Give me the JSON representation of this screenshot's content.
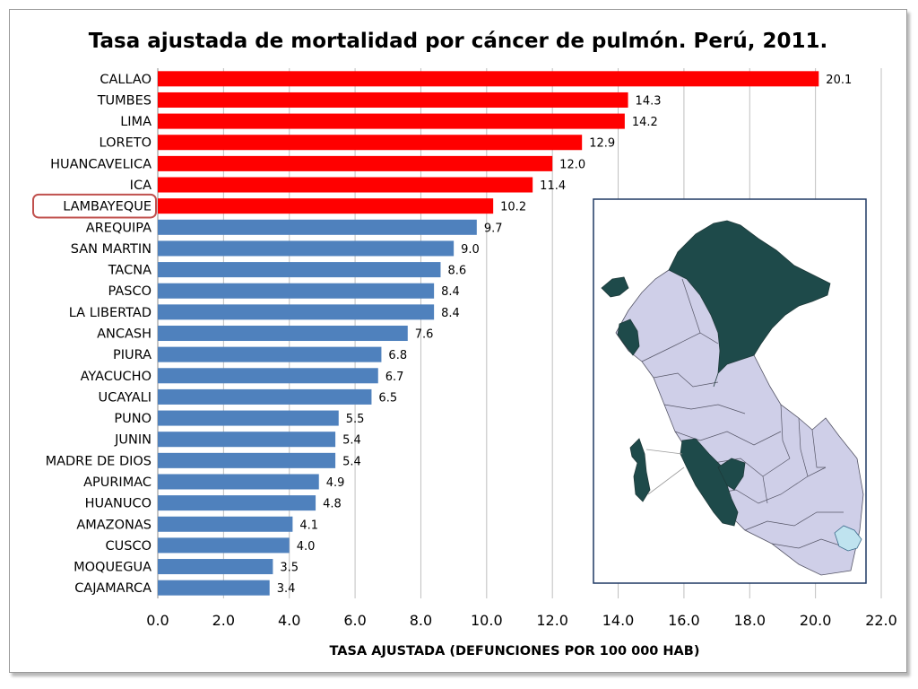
{
  "chart_data": {
    "type": "bar",
    "orientation": "horizontal",
    "title": "Tasa ajustada de mortalidad por cáncer de pulmón. Perú, 2011.",
    "xlabel": "TASA AJUSTADA (DEFUNCIONES POR 100 000 HAB)",
    "ylabel": "",
    "xlim": [
      0,
      22
    ],
    "x_ticks": [
      "0.0",
      "2.0",
      "4.0",
      "6.0",
      "8.0",
      "10.0",
      "12.0",
      "14.0",
      "16.0",
      "18.0",
      "20.0",
      "22.0"
    ],
    "grid": true,
    "categories": [
      "CALLAO",
      "TUMBES",
      "LIMA",
      "LORETO",
      "HUANCAVELICA",
      "ICA",
      "LAMBAYEQUE",
      "AREQUIPA",
      "SAN MARTIN",
      "TACNA",
      "PASCO",
      "LA LIBERTAD",
      "ANCASH",
      "PIURA",
      "AYACUCHO",
      "UCAYALI",
      "PUNO",
      "JUNIN",
      "MADRE DE DIOS",
      "APURIMAC",
      "HUANUCO",
      "AMAZONAS",
      "CUSCO",
      "MOQUEGUA",
      "CAJAMARCA"
    ],
    "values": [
      20.1,
      14.3,
      14.2,
      12.9,
      12.0,
      11.4,
      10.2,
      9.7,
      9.0,
      8.6,
      8.4,
      8.4,
      7.6,
      6.8,
      6.7,
      6.5,
      5.5,
      5.4,
      5.4,
      4.9,
      4.8,
      4.1,
      4.0,
      3.5,
      3.4
    ],
    "value_labels": [
      "20.1",
      "14.3",
      "14.2",
      "12.9",
      "12.0",
      "11.4",
      "10.2",
      "9.7",
      "9.0",
      "8.6",
      "8.4",
      "8.4",
      "7.6",
      "6.8",
      "6.7",
      "6.5",
      "5.5",
      "5.4",
      "5.4",
      "4.9",
      "4.8",
      "4.1",
      "4.0",
      "3.5",
      "3.4"
    ],
    "highlight_count": 7,
    "highlighted_category": "LAMBAYEQUE",
    "colors": {
      "high": "#ff0000",
      "normal": "#4f81bd",
      "highlight_box": "#c0504d",
      "map_dark": "#1e4a4a",
      "map_light": "#cfcfe8"
    }
  },
  "inset_map": {
    "description_icon": "peru-map-icon"
  }
}
